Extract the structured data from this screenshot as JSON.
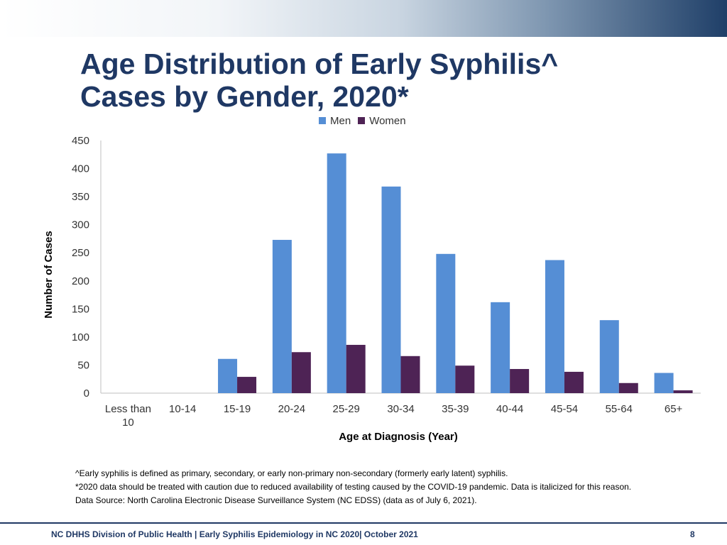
{
  "slide": {
    "title_line1": "Age Distribution of Early Syphilis^",
    "title_line2": "Cases by Gender, 2020*",
    "notes": [
      "^Early syphilis is defined as primary, secondary, or early non-primary non-secondary (formerly early latent) syphilis.",
      "*2020 data should be treated with caution due to reduced availability of testing caused by the COVID-19 pandemic. Data is italicized for this reason.",
      "Data Source: North Carolina Electronic Disease Surveillance System (NC EDSS) (data as of July 6, 2021)."
    ],
    "footer": "NC DHHS Division of Public Health | Early Syphilis Epidemiology in NC 2020| October 2021",
    "page_number": "8"
  },
  "chart_data": {
    "type": "bar",
    "title": "",
    "xlabel": "Age at Diagnosis (Year)",
    "ylabel": "Number of Cases",
    "ylim": [
      0,
      450
    ],
    "yticks": [
      0,
      50,
      100,
      150,
      200,
      250,
      300,
      350,
      400,
      450
    ],
    "categories": [
      "Less than 10",
      "10-14",
      "15-19",
      "20-24",
      "25-29",
      "30-34",
      "35-39",
      "40-44",
      "45-54",
      "55-64",
      "65+"
    ],
    "legend_position": "top-center",
    "series": [
      {
        "name": "Men",
        "color": "#558ed5",
        "values": [
          0,
          0,
          61,
          273,
          427,
          368,
          248,
          162,
          237,
          130,
          36
        ]
      },
      {
        "name": "Women",
        "color": "#4e2355",
        "values": [
          0,
          0,
          29,
          73,
          86,
          66,
          49,
          43,
          38,
          18,
          5
        ]
      }
    ]
  }
}
